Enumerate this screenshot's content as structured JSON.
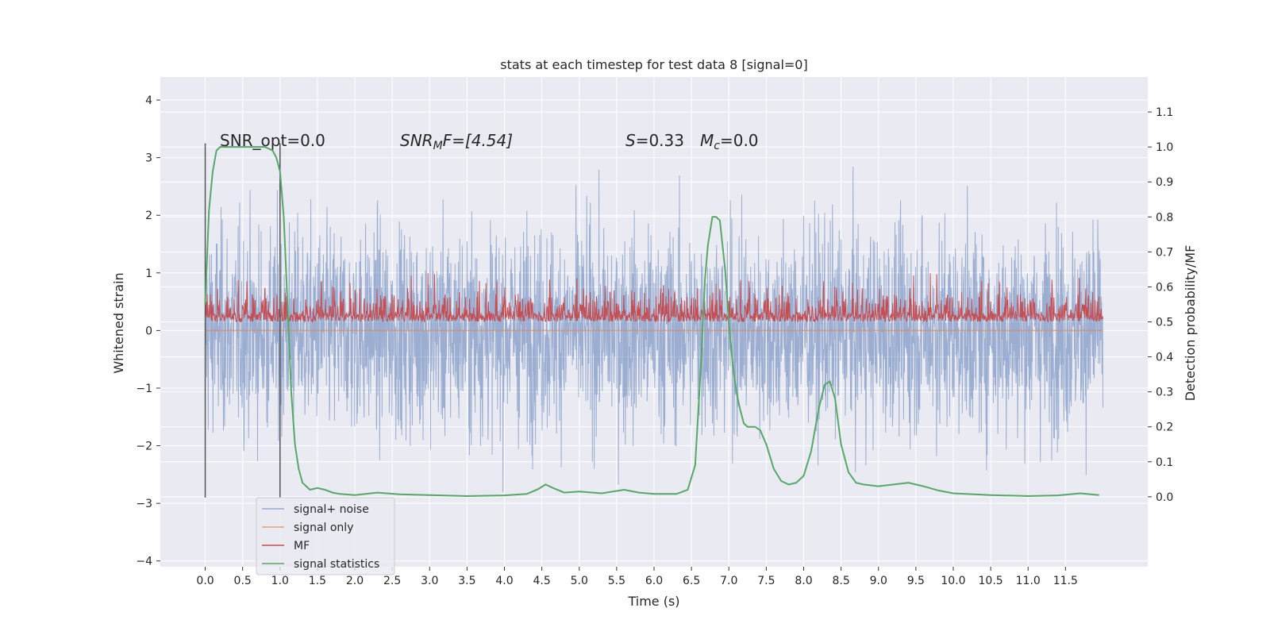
{
  "chart_data": {
    "type": "line",
    "title": "stats at each timestep for test data 8 [signal=0]",
    "xlabel": "Time (s)",
    "ylabel": "Whitened strain",
    "ylabel_right": "Detection probability/MF",
    "xlim": [
      -0.6,
      12.6
    ],
    "ylim": [
      -4.1,
      4.4
    ],
    "ylim_right": [
      -0.2,
      1.2
    ],
    "x_ticks": [
      "0.0",
      "0.5",
      "1.0",
      "1.5",
      "2.0",
      "2.5",
      "3.0",
      "3.5",
      "4.0",
      "4.5",
      "5.0",
      "5.5",
      "6.0",
      "6.5",
      "7.0",
      "7.5",
      "8.0",
      "8.5",
      "9.0",
      "9.5",
      "10.0",
      "10.5",
      "11.0",
      "11.5"
    ],
    "x_tick_values": [
      0,
      0.5,
      1,
      1.5,
      2,
      2.5,
      3,
      3.5,
      4,
      4.5,
      5,
      5.5,
      6,
      6.5,
      7,
      7.5,
      8,
      8.5,
      9,
      9.5,
      10,
      10.5,
      11,
      11.5
    ],
    "y_ticks": [
      -4,
      -3,
      -2,
      -1,
      0,
      1,
      2,
      3,
      4
    ],
    "y_tick_labels": [
      "−4",
      "−3",
      "−2",
      "−1",
      "0",
      "1",
      "2",
      "3",
      "4"
    ],
    "y_ticks_right": [
      0.0,
      0.1,
      0.2,
      0.3,
      0.4,
      0.5,
      0.6,
      0.7,
      0.8,
      0.9,
      1.0,
      1.1
    ],
    "y_tick_labels_right": [
      "0.0",
      "0.1",
      "0.2",
      "0.3",
      "0.4",
      "0.5",
      "0.6",
      "0.7",
      "0.8",
      "0.9",
      "1.0",
      "1.1"
    ],
    "grid": true,
    "legend_position": "lower-left",
    "colors": {
      "background": "#eaeaf2",
      "grid": "#ffffff",
      "signal_noise": "#4c72b0",
      "signal_only": "#dd8452",
      "mf": "#c44e52",
      "signal_statistics": "#55a868",
      "vline": "#555555"
    },
    "annotations": {
      "snr_opt": "SNR_opt=0.0",
      "snr_mf_label": "SNR",
      "snr_mf_sub": "M",
      "snr_mf_rest": "F=[4.54]",
      "s_label": "S",
      "s_rest": "=0.33",
      "mc_label": "M",
      "mc_sub": "c",
      "mc_rest": "=0.0"
    },
    "vlines_x": [
      0.0,
      1.0
    ],
    "vlines_yrange": [
      -2.9,
      3.25
    ],
    "series": [
      {
        "name": "signal+ noise",
        "kind": "noise",
        "x_range": [
          0,
          12
        ],
        "amplitude": 1.0
      },
      {
        "name": "signal only",
        "kind": "flat",
        "x": [
          0,
          12
        ],
        "y": [
          0,
          0
        ]
      },
      {
        "name": "MF",
        "kind": "mf",
        "x_range": [
          0,
          12
        ],
        "axis": "right"
      },
      {
        "name": "signal statistics",
        "kind": "line",
        "axis": "right",
        "x": [
          0.0,
          0.05,
          0.1,
          0.15,
          0.2,
          0.3,
          0.5,
          0.7,
          0.8,
          0.9,
          0.95,
          1.0,
          1.05,
          1.1,
          1.15,
          1.2,
          1.25,
          1.3,
          1.4,
          1.5,
          1.6,
          1.7,
          1.8,
          2.0,
          2.3,
          2.6,
          3.0,
          3.5,
          4.0,
          4.3,
          4.45,
          4.55,
          4.65,
          4.8,
          5.0,
          5.3,
          5.6,
          5.8,
          6.0,
          6.3,
          6.45,
          6.55,
          6.62,
          6.68,
          6.72,
          6.78,
          6.83,
          6.88,
          6.95,
          7.0,
          7.05,
          7.1,
          7.15,
          7.2,
          7.25,
          7.3,
          7.35,
          7.42,
          7.5,
          7.6,
          7.7,
          7.8,
          7.9,
          8.0,
          8.1,
          8.2,
          8.28,
          8.35,
          8.42,
          8.5,
          8.6,
          8.7,
          8.8,
          9.0,
          9.2,
          9.4,
          9.6,
          9.8,
          10.0,
          10.5,
          11.0,
          11.4,
          11.7,
          11.95
        ],
        "y": [
          0.55,
          0.82,
          0.93,
          0.99,
          1.0,
          1.0,
          1.0,
          1.0,
          1.0,
          0.99,
          0.97,
          0.93,
          0.8,
          0.55,
          0.3,
          0.15,
          0.08,
          0.04,
          0.02,
          0.025,
          0.02,
          0.012,
          0.008,
          0.005,
          0.012,
          0.007,
          0.005,
          0.002,
          0.004,
          0.008,
          0.022,
          0.035,
          0.025,
          0.012,
          0.015,
          0.01,
          0.02,
          0.012,
          0.008,
          0.008,
          0.02,
          0.09,
          0.35,
          0.62,
          0.72,
          0.8,
          0.8,
          0.79,
          0.65,
          0.5,
          0.38,
          0.3,
          0.25,
          0.21,
          0.2,
          0.2,
          0.2,
          0.19,
          0.15,
          0.08,
          0.045,
          0.035,
          0.04,
          0.06,
          0.13,
          0.25,
          0.32,
          0.33,
          0.28,
          0.15,
          0.07,
          0.04,
          0.035,
          0.03,
          0.035,
          0.04,
          0.03,
          0.018,
          0.01,
          0.005,
          0.002,
          0.004,
          0.01,
          0.005
        ]
      }
    ]
  }
}
